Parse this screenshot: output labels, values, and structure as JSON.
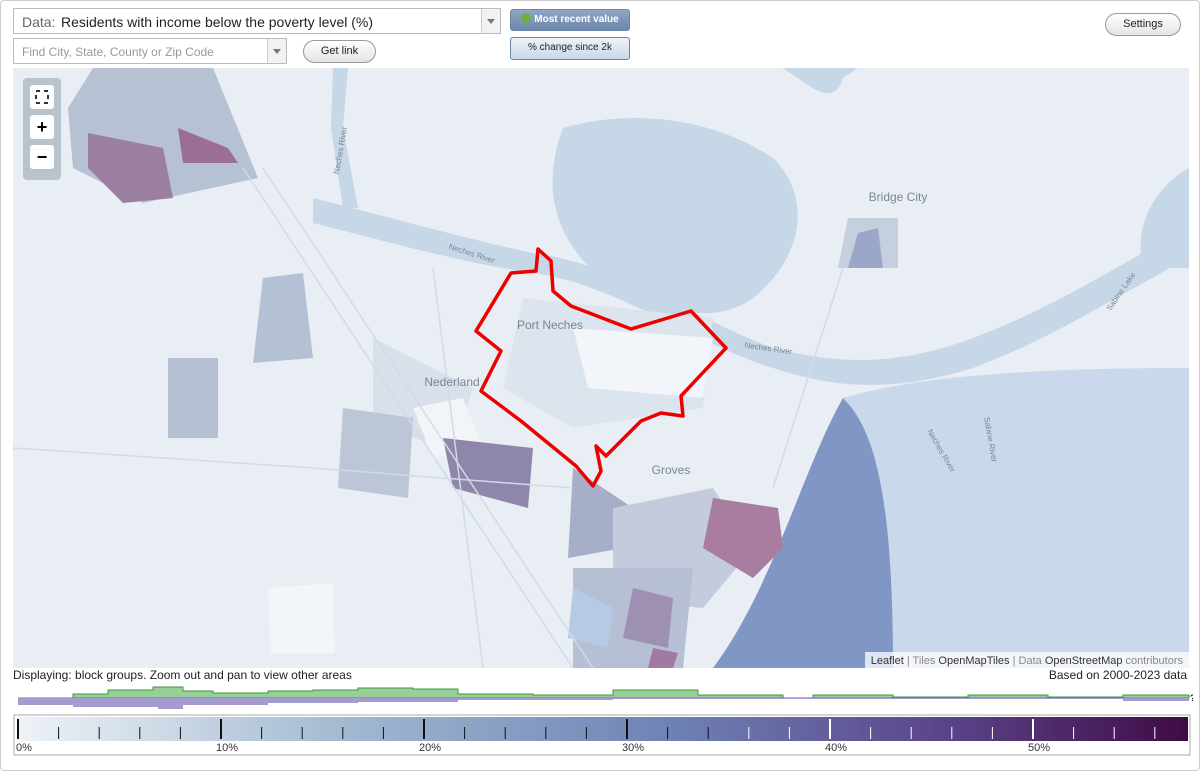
{
  "controls": {
    "data_label": "Data:",
    "data_value": "Residents with income below the poverty level (%)",
    "most_recent": "Most recent value",
    "change": "% change since 2k",
    "search_placeholder": "Find City, State, County or Zip Code",
    "get_link": "Get link",
    "settings": "Settings"
  },
  "map": {
    "zoom": [
      "+",
      "−"
    ],
    "labels": [
      "Bridge City",
      "Port Neches",
      "Nederland",
      "Groves",
      "Neches River",
      "Neches River",
      "Neches River",
      "Sabine River",
      "Sabine Lake",
      "Neches River"
    ],
    "attribution": [
      "Leaflet",
      " | Tiles ",
      "OpenMapTiles",
      " | Data ",
      "OpenStreetMap",
      " contributors"
    ]
  },
  "footer": {
    "displaying": "Displaying: block groups. Zoom out and pan to view other areas",
    "based_on": "Based on 2000-2023 data",
    "help": "?"
  },
  "legend": {
    "ticks": [
      "0%",
      "10%",
      "20%",
      "30%",
      "40%",
      "50%"
    ]
  }
}
